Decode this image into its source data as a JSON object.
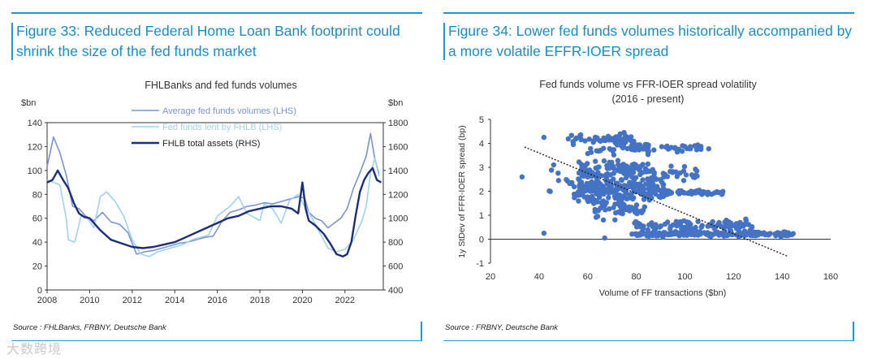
{
  "figure33": {
    "heading": "Figure 33: Reduced Federal Home Loan Bank footprint could shrink the size of the fed funds market",
    "source": "Source : FHLBanks, FRBNY, Deutsche Bank"
  },
  "figure34": {
    "heading": "Figure 34: Lower fed funds volumes historically accompanied by a more volatile EFFR-IOER spread",
    "source": "Source : FRBNY, Deutsche Bank"
  },
  "watermark": "大数跨境",
  "colors": {
    "accent": "#1b9bd1",
    "avg": "#7b93d2",
    "lent": "#9fd2ee",
    "assets": "#1a2f7a",
    "scatter": "#4472c4"
  },
  "chart_data": [
    {
      "type": "line",
      "title": "FHLBanks and fed funds volumes",
      "ylabel_left": "$bn",
      "ylabel_right": "$bn",
      "ylim_left": [
        0,
        140
      ],
      "ylim_right": [
        400,
        1800
      ],
      "xlim": [
        2008,
        2023.8
      ],
      "xticks": [
        "2008",
        "2010",
        "2012",
        "2014",
        "2016",
        "2018",
        "2020",
        "2022"
      ],
      "yticks_left": [
        "0",
        "20",
        "40",
        "60",
        "80",
        "100",
        "120",
        "140"
      ],
      "yticks_right": [
        "400",
        "600",
        "800",
        "1000",
        "1200",
        "1400",
        "1600",
        "1800"
      ],
      "legend_position": "top-center",
      "series": [
        {
          "name": "Average fed funds volumes (LHS)",
          "axis": "left",
          "x": [
            2008.0,
            2008.3,
            2008.6,
            2008.9,
            2009.2,
            2009.5,
            2009.8,
            2010.2,
            2010.6,
            2011.0,
            2011.4,
            2011.8,
            2012.2,
            2012.6,
            2013.0,
            2013.4,
            2013.8,
            2014.2,
            2014.6,
            2015.0,
            2015.4,
            2015.8,
            2016.2,
            2016.6,
            2017.0,
            2017.4,
            2017.8,
            2018.2,
            2018.6,
            2019.0,
            2019.4,
            2019.8,
            2020.1,
            2020.3,
            2020.6,
            2020.9,
            2021.2,
            2021.5,
            2021.8,
            2022.1,
            2022.4,
            2022.7,
            2023.0,
            2023.2,
            2023.4,
            2023.6
          ],
          "values": [
            103,
            128,
            115,
            96,
            70,
            68,
            62,
            58,
            65,
            57,
            55,
            48,
            30,
            32,
            33,
            35,
            37,
            39,
            40,
            42,
            44,
            45,
            57,
            65,
            67,
            70,
            71,
            73,
            72,
            74,
            76,
            78,
            77,
            65,
            60,
            58,
            52,
            56,
            60,
            68,
            85,
            98,
            112,
            131,
            110,
            97
          ]
        },
        {
          "name": "Fed funds lent by FHLB (LHS)",
          "axis": "left",
          "x": [
            2008.0,
            2008.3,
            2008.6,
            2008.9,
            2009.0,
            2009.3,
            2009.6,
            2009.9,
            2010.2,
            2010.5,
            2010.8,
            2011.2,
            2011.6,
            2012.0,
            2012.4,
            2012.8,
            2013.2,
            2013.6,
            2014.0,
            2014.4,
            2014.8,
            2015.2,
            2015.6,
            2016.0,
            2016.3,
            2016.6,
            2017.0,
            2017.4,
            2017.8,
            2018.0,
            2018.2,
            2018.6,
            2019.0,
            2019.4,
            2019.8,
            2020.1,
            2020.3,
            2020.6,
            2020.9,
            2021.2,
            2021.6,
            2022.0,
            2022.4,
            2022.8,
            2023.0,
            2023.2,
            2023.4,
            2023.6
          ],
          "values": [
            92,
            90,
            88,
            60,
            42,
            40,
            62,
            60,
            52,
            78,
            82,
            74,
            62,
            42,
            30,
            28,
            32,
            34,
            36,
            38,
            42,
            44,
            46,
            62,
            66,
            70,
            78,
            64,
            60,
            58,
            72,
            68,
            56,
            75,
            80,
            70,
            65,
            55,
            45,
            35,
            32,
            34,
            42,
            58,
            70,
            98,
            110,
            95
          ]
        },
        {
          "name": "FHLB total assets (RHS)",
          "axis": "right",
          "x": [
            2008.0,
            2008.25,
            2008.5,
            2008.75,
            2009.0,
            2009.25,
            2009.5,
            2009.75,
            2010.0,
            2010.5,
            2011.0,
            2011.5,
            2012.0,
            2012.5,
            2013.0,
            2013.5,
            2014.0,
            2014.5,
            2015.0,
            2015.5,
            2016.0,
            2016.5,
            2017.0,
            2017.5,
            2018.0,
            2018.5,
            2019.0,
            2019.5,
            2019.8,
            2020.0,
            2020.15,
            2020.3,
            2020.6,
            2021.0,
            2021.3,
            2021.6,
            2021.9,
            2022.1,
            2022.3,
            2022.5,
            2022.7,
            2022.9,
            2023.1,
            2023.3,
            2023.5,
            2023.7
          ],
          "values": [
            1300,
            1320,
            1400,
            1320,
            1250,
            1130,
            1040,
            1010,
            1000,
            900,
            820,
            790,
            760,
            750,
            760,
            780,
            800,
            840,
            880,
            920,
            960,
            1000,
            1020,
            1060,
            1080,
            1100,
            1100,
            1080,
            1040,
            1300,
            1080,
            980,
            940,
            870,
            790,
            700,
            680,
            700,
            800,
            1020,
            1220,
            1320,
            1380,
            1420,
            1320,
            1300
          ]
        }
      ]
    },
    {
      "type": "scatter",
      "title": "Fed funds volume vs FFR-IOER spread volatility",
      "subtitle": "(2016 - present)",
      "xlabel": "Volume of FF transactions ($bn)",
      "ylabel": "1y StDev of FFR-IOER spread (bp)",
      "xlim": [
        20,
        160
      ],
      "ylim": [
        -1,
        5
      ],
      "xticks": [
        "20",
        "40",
        "60",
        "80",
        "100",
        "120",
        "140",
        "160"
      ],
      "yticks": [
        "-1",
        "0",
        "1",
        "2",
        "3",
        "4",
        "5"
      ],
      "trendline": {
        "x": [
          34,
          142
        ],
        "y": [
          3.85,
          -0.7
        ]
      },
      "clusters": [
        {
          "x_range": [
            52,
            78
          ],
          "y_center": 4.2,
          "y_spread": 0.12,
          "count": 60
        },
        {
          "x_range": [
            60,
            86
          ],
          "y_center": 3.8,
          "y_spread": 0.15,
          "count": 40
        },
        {
          "x_range": [
            84,
            110
          ],
          "y_center": 3.8,
          "y_spread": 0.08,
          "count": 28
        },
        {
          "x_range": [
            56,
            86
          ],
          "y_center": 2.9,
          "y_spread": 0.2,
          "count": 90
        },
        {
          "x_range": [
            86,
            106
          ],
          "y_center": 2.75,
          "y_spread": 0.15,
          "count": 28
        },
        {
          "x_range": [
            56,
            92
          ],
          "y_center": 2.05,
          "y_spread": 0.3,
          "count": 220
        },
        {
          "x_range": [
            90,
            116
          ],
          "y_center": 1.95,
          "y_spread": 0.05,
          "count": 50
        },
        {
          "x_range": [
            62,
            84
          ],
          "y_center": 1.3,
          "y_spread": 0.3,
          "count": 60
        },
        {
          "x_range": [
            79,
            128
          ],
          "y_center": 0.55,
          "y_spread": 0.15,
          "count": 90
        },
        {
          "x_range": [
            78,
            145
          ],
          "y_center": 0.22,
          "y_spread": 0.06,
          "count": 170
        },
        {
          "x_range": [
            44,
            60
          ],
          "y_center": 2.3,
          "y_spread": 0.35,
          "count": 20
        }
      ],
      "extra_points": [
        {
          "x": 33,
          "y": 2.6
        },
        {
          "x": 42,
          "y": 0.25
        },
        {
          "x": 67,
          "y": 0.05
        },
        {
          "x": 46,
          "y": 3.1
        },
        {
          "x": 48,
          "y": 2.45
        },
        {
          "x": 42,
          "y": 4.25
        }
      ]
    }
  ]
}
